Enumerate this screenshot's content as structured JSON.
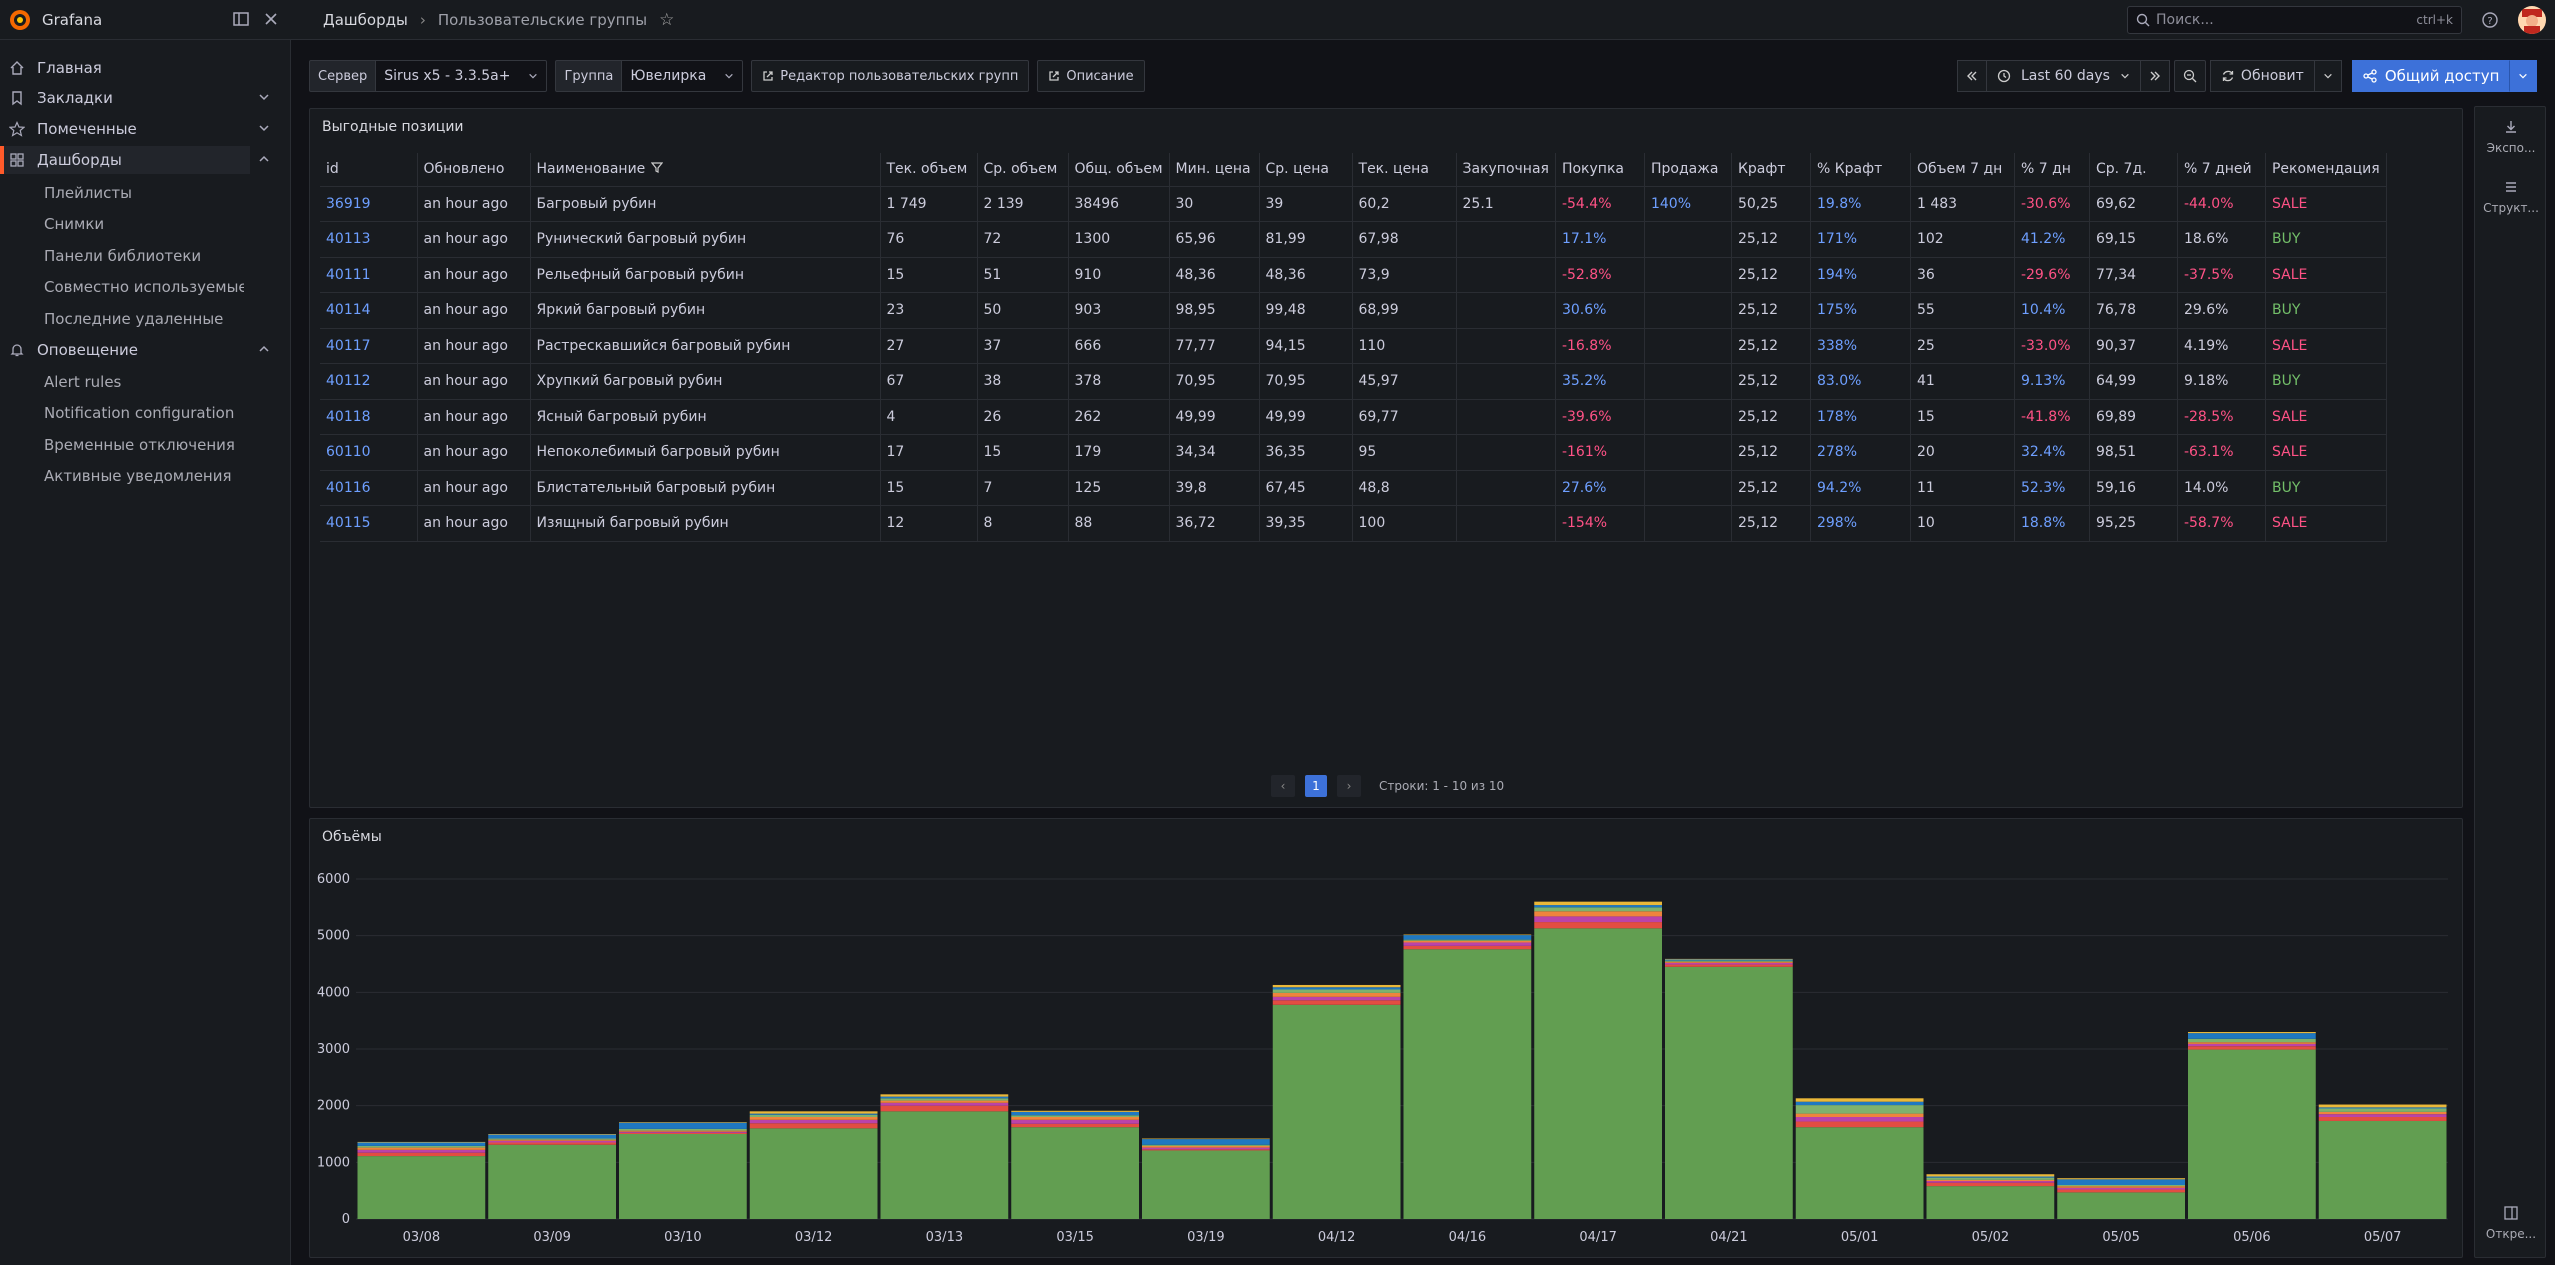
{
  "brand": {
    "name": "Grafana"
  },
  "breadcrumb": {
    "root": "Дашборды",
    "sep": "›",
    "current": "Пользовательские группы"
  },
  "search": {
    "placeholder": "Поиск...",
    "shortcut": "ctrl+k"
  },
  "sidebar": {
    "items": [
      {
        "label": "Главная",
        "icon": "home-icon"
      },
      {
        "label": "Закладки",
        "icon": "bookmark-icon"
      },
      {
        "label": "Помеченные",
        "icon": "star-icon"
      },
      {
        "label": "Дашборды",
        "icon": "apps-icon"
      },
      {
        "label": "Оповещение",
        "icon": "bell-icon"
      }
    ],
    "dashboards_sub": [
      "Плейлисты",
      "Снимки",
      "Панели библиотеки",
      "Совместно используемые ...",
      "Последние удаленные"
    ],
    "alerting_sub": [
      "Alert rules",
      "Notification configuration",
      "Временные отключения",
      "Активные уведомления"
    ]
  },
  "toolbar": {
    "server_label": "Сервер",
    "server_value": "Sirus x5 - 3.3.5a+",
    "group_label": "Группа",
    "group_value": "Ювелирка",
    "editor_button": "Редактор пользовательских групп",
    "description_button": "Описание",
    "time_range": "Last 60 days",
    "refresh": "Обновит",
    "share": "Общий доступ"
  },
  "table_panel": {
    "title": "Выгодные позиции",
    "columns": [
      "id",
      "Обновлено",
      "Наименование",
      "Тек. объем",
      "Ср. объем",
      "Общ. объем",
      "Мин. цена",
      "Ср. цена",
      "Тек. цена",
      "Закупочная",
      "Покупка",
      "Продажа",
      "Крафт",
      "% Крафт",
      "Объем 7 дн",
      "% 7 дн",
      "Ср. 7д.",
      "% 7 дней",
      "Рекомендация"
    ],
    "rows": [
      [
        "36919",
        "an hour ago",
        "Багровый рубин",
        "1 749",
        "2 139",
        "38496",
        "30",
        "39",
        "60,2",
        "25.1",
        "-54.4%",
        "140%",
        "50,25",
        "19.8%",
        "1 483",
        "-30.6%",
        "69,62",
        "-44.0%",
        "SALE"
      ],
      [
        "40113",
        "an hour ago",
        "Рунический багровый рубин",
        "76",
        "72",
        "1300",
        "65,96",
        "81,99",
        "67,98",
        "",
        "17.1%",
        "",
        "25,12",
        "171%",
        "102",
        "41.2%",
        "69,15",
        "18.6%",
        "BUY"
      ],
      [
        "40111",
        "an hour ago",
        "Рельефный багровый рубин",
        "15",
        "51",
        "910",
        "48,36",
        "48,36",
        "73,9",
        "",
        "-52.8%",
        "",
        "25,12",
        "194%",
        "36",
        "-29.6%",
        "77,34",
        "-37.5%",
        "SALE"
      ],
      [
        "40114",
        "an hour ago",
        "Яркий багровый рубин",
        "23",
        "50",
        "903",
        "98,95",
        "99,48",
        "68,99",
        "",
        "30.6%",
        "",
        "25,12",
        "175%",
        "55",
        "10.4%",
        "76,78",
        "29.6%",
        "BUY"
      ],
      [
        "40117",
        "an hour ago",
        "Растрескавшийся багровый рубин",
        "27",
        "37",
        "666",
        "77,77",
        "94,15",
        "110",
        "",
        "-16.8%",
        "",
        "25,12",
        "338%",
        "25",
        "-33.0%",
        "90,37",
        "4.19%",
        "SALE"
      ],
      [
        "40112",
        "an hour ago",
        "Хрупкий багровый рубин",
        "67",
        "38",
        "378",
        "70,95",
        "70,95",
        "45,97",
        "",
        "35.2%",
        "",
        "25,12",
        "83.0%",
        "41",
        "9.13%",
        "64,99",
        "9.18%",
        "BUY"
      ],
      [
        "40118",
        "an hour ago",
        "Ясный багровый рубин",
        "4",
        "26",
        "262",
        "49,99",
        "49,99",
        "69,77",
        "",
        "-39.6%",
        "",
        "25,12",
        "178%",
        "15",
        "-41.8%",
        "69,89",
        "-28.5%",
        "SALE"
      ],
      [
        "60110",
        "an hour ago",
        "Непоколебимый багровый рубин",
        "17",
        "15",
        "179",
        "34,34",
        "36,35",
        "95",
        "",
        "-161%",
        "",
        "25,12",
        "278%",
        "20",
        "32.4%",
        "98,51",
        "-63.1%",
        "SALE"
      ],
      [
        "40116",
        "an hour ago",
        "Блистательный багровый рубин",
        "15",
        "7",
        "125",
        "39,8",
        "67,45",
        "48,8",
        "",
        "27.6%",
        "",
        "25,12",
        "94.2%",
        "11",
        "52.3%",
        "59,16",
        "14.0%",
        "BUY"
      ],
      [
        "40115",
        "an hour ago",
        "Изящный багровый рубин",
        "12",
        "8",
        "88",
        "36,72",
        "39,35",
        "100",
        "",
        "-154%",
        "",
        "25,12",
        "298%",
        "10",
        "18.8%",
        "95,25",
        "-58.7%",
        "SALE"
      ]
    ],
    "pagination": {
      "page": "1",
      "summary": "Строки: 1 - 10 из 10"
    }
  },
  "chart_panel": {
    "title": "Объёмы"
  },
  "chart_data": {
    "type": "bar",
    "stacked": true,
    "categories": [
      "03/08",
      "03/09",
      "03/10",
      "03/12",
      "03/13",
      "03/15",
      "03/19",
      "04/12",
      "04/16",
      "04/17",
      "04/21",
      "05/01",
      "05/02",
      "05/05",
      "05/06",
      "05/07"
    ],
    "series": [
      {
        "values": [
          1110,
          1310,
          1500,
          1600,
          1900,
          1620,
          1210,
          3780,
          4760,
          5130,
          4450,
          1620,
          580,
          470,
          2990,
          1730
        ],
        "color": "#629e51"
      },
      {
        "values": [
          60,
          40,
          20,
          90,
          100,
          60,
          20,
          80,
          60,
          110,
          40,
          100,
          60,
          50,
          60,
          70
        ],
        "color": "#e24d42"
      },
      {
        "values": [
          50,
          30,
          20,
          60,
          50,
          70,
          30,
          60,
          60,
          100,
          30,
          80,
          30,
          30,
          40,
          50
        ],
        "color": "#ba43a9"
      },
      {
        "values": [
          40,
          20,
          20,
          50,
          40,
          50,
          30,
          70,
          30,
          90,
          20,
          60,
          20,
          30,
          30,
          40
        ],
        "color": "#ef843c"
      },
      {
        "values": [
          30,
          20,
          30,
          40,
          40,
          30,
          20,
          60,
          20,
          70,
          20,
          150,
          40,
          20,
          60,
          60
        ],
        "color": "#7eb26d"
      },
      {
        "values": [
          60,
          70,
          110,
          20,
          30,
          60,
          100,
          40,
          80,
          40,
          20,
          60,
          20,
          100,
          100,
          20
        ],
        "color": "#1f78c1"
      },
      {
        "values": [
          10,
          10,
          10,
          40,
          40,
          20,
          10,
          40,
          10,
          60,
          10,
          60,
          40,
          20,
          20,
          50
        ],
        "color": "#eab839"
      }
    ],
    "ylim": [
      0,
      6000
    ],
    "yticks": [
      0,
      1000,
      2000,
      3000,
      4000,
      5000,
      6000
    ],
    "grid": true,
    "legend": "none"
  },
  "rightrail": {
    "export": "Экспо...",
    "structure": "Структ...",
    "open": "Откре..."
  },
  "colors": {
    "accent": "#3d71d9",
    "brand": "#ff5a2a",
    "positive": "#73bf69",
    "negative": "#ff5286",
    "link": "#6e9fff"
  }
}
